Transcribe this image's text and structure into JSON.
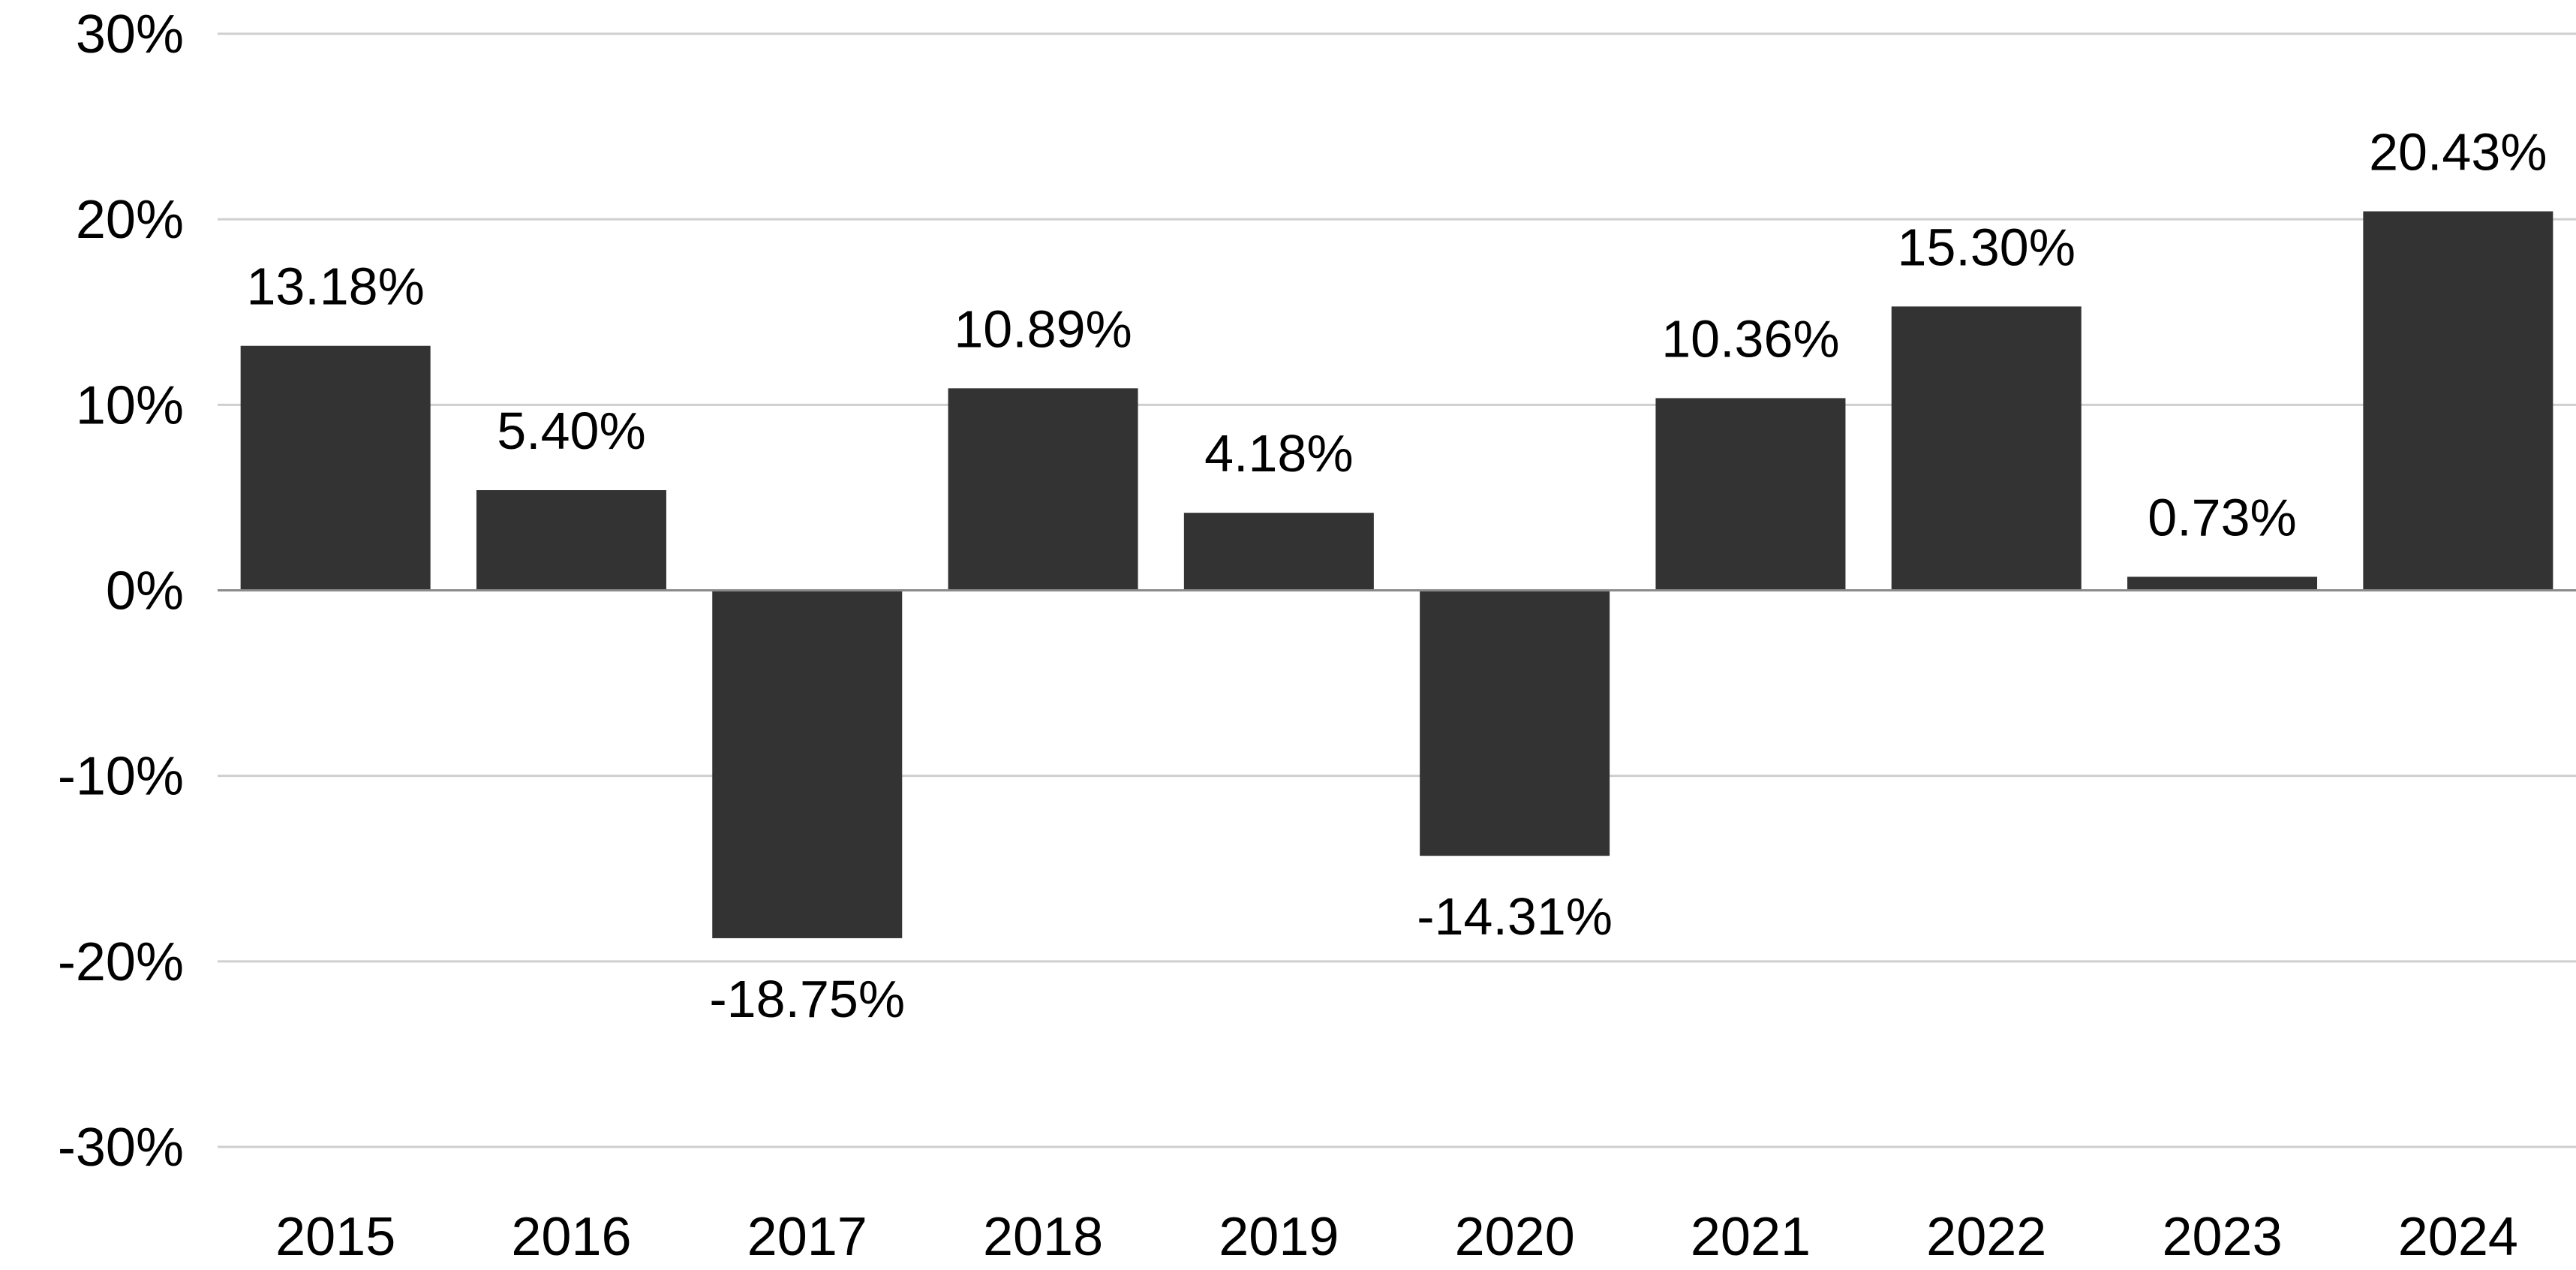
{
  "chart_data": {
    "type": "bar",
    "title": "",
    "xlabel": "",
    "ylabel": "",
    "categories": [
      "2015",
      "2016",
      "2017",
      "2018",
      "2019",
      "2020",
      "2021",
      "2022",
      "2023",
      "2024"
    ],
    "values": [
      13.18,
      5.4,
      -18.75,
      10.89,
      4.18,
      -14.31,
      10.36,
      15.3,
      0.73,
      20.43
    ],
    "value_labels": [
      "13.18%",
      "5.40%",
      "-18.75%",
      "10.89%",
      "4.18%",
      "-14.31%",
      "10.36%",
      "15.30%",
      "0.73%",
      "20.43%"
    ],
    "ylim": [
      -30,
      30
    ],
    "yticks": [
      30,
      20,
      10,
      0,
      -10,
      -20,
      -30
    ],
    "ytick_labels": [
      "30%",
      "20%",
      "10%",
      "0%",
      "-10%",
      "-20%",
      "-30%"
    ],
    "grid": true,
    "legend": "none",
    "bar_color": "#333333",
    "grid_color": "#cfcfcf",
    "zero_line_color": "#8a8a8a"
  }
}
